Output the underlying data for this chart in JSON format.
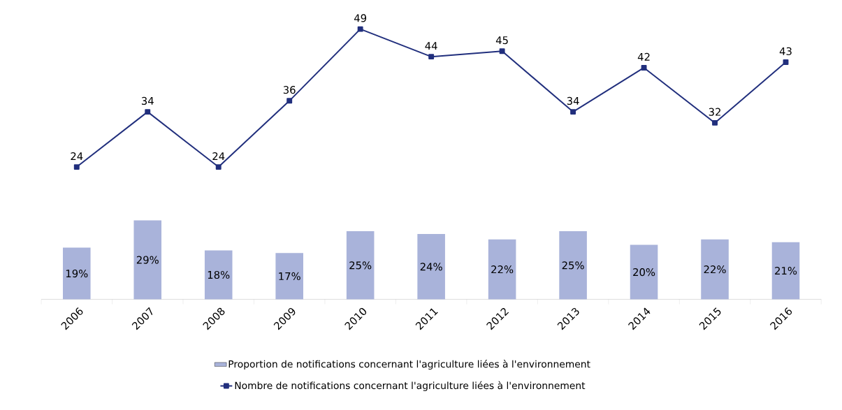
{
  "chart_data": [
    {
      "type": "bar",
      "categories": [
        "2006",
        "2007",
        "2008",
        "2009",
        "2010",
        "2011",
        "2012",
        "2013",
        "2014",
        "2015",
        "2016"
      ],
      "series": [
        {
          "name": "Proportion de notifications concernant l'agriculture liées à l'environnement",
          "color": "#a9b3da",
          "values": [
            19,
            29,
            18,
            17,
            25,
            24,
            22,
            25,
            20,
            22,
            21
          ],
          "value_labels": [
            "19%",
            "29%",
            "18%",
            "17%",
            "25%",
            "24%",
            "22%",
            "25%",
            "20%",
            "22%",
            "21%"
          ]
        }
      ],
      "tick_labels": "x",
      "legend": "bottom"
    },
    {
      "type": "line",
      "categories": [
        "2006",
        "2007",
        "2008",
        "2009",
        "2010",
        "2011",
        "2012",
        "2013",
        "2014",
        "2015",
        "2016"
      ],
      "series": [
        {
          "name": "Nombre de notifications concernant l'agriculture liées à l'environnement",
          "color": "#212f7d",
          "values": [
            24,
            34,
            24,
            36,
            49,
            44,
            45,
            34,
            42,
            32,
            43
          ]
        }
      ],
      "tick_labels": false,
      "legend": "bottom",
      "marker": "square",
      "data_labels": true
    }
  ]
}
